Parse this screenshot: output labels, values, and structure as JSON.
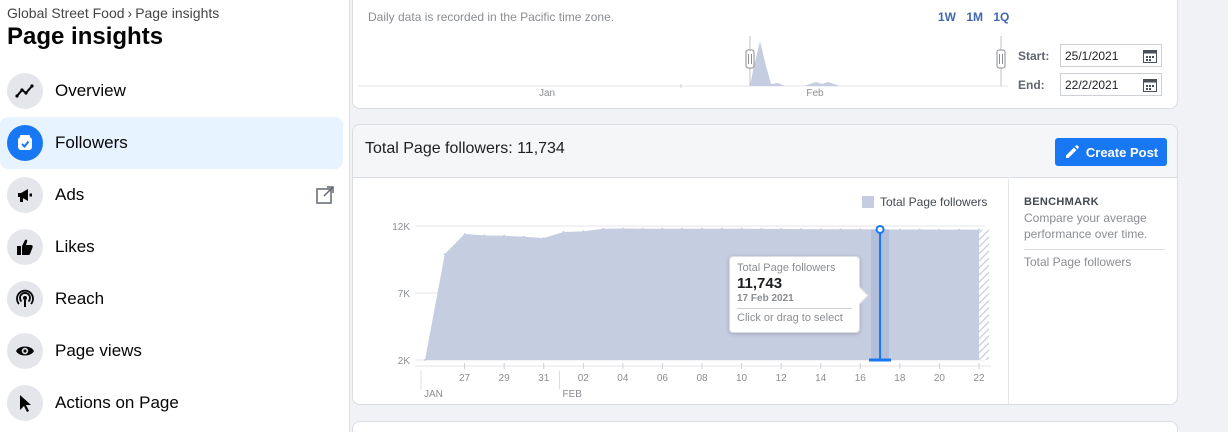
{
  "sidebar": {
    "breadcrumb": {
      "page": "Global Street Food",
      "section": "Page insights"
    },
    "title": "Page insights",
    "items": [
      {
        "label": "Overview",
        "icon": "trend-icon"
      },
      {
        "label": "Followers",
        "icon": "followers-icon"
      },
      {
        "label": "Ads",
        "icon": "megaphone-icon"
      },
      {
        "label": "Likes",
        "icon": "thumbs-up-icon"
      },
      {
        "label": "Reach",
        "icon": "broadcast-icon"
      },
      {
        "label": "Page views",
        "icon": "eye-icon"
      },
      {
        "label": "Actions on Page",
        "icon": "cursor-icon"
      }
    ]
  },
  "top_panel": {
    "timezone_note": "Daily data is recorded in the Pacific time zone.",
    "ranges": [
      "1W",
      "1M",
      "1Q"
    ],
    "mini_chart_labels": [
      "Jan",
      "Feb"
    ],
    "start_label": "Start:",
    "start_value": "25/1/2021",
    "end_label": "End:",
    "end_value": "22/2/2021"
  },
  "main": {
    "title": "Total Page followers: 11,734",
    "create_post_label": "Create Post",
    "legend": "Total Page followers",
    "benchmark": {
      "title": "BENCHMARK",
      "description": "Compare your average performance over time.",
      "item": "Total Page followers"
    },
    "tooltip": {
      "label": "Total Page followers",
      "value": "11,743",
      "date": "17 Feb 2021",
      "hint": "Click or drag to select"
    }
  },
  "chart_data": {
    "type": "area",
    "series": [
      {
        "name": "Total Page followers"
      }
    ],
    "x_tick_labels": [
      "27",
      "29",
      "31",
      "02",
      "04",
      "06",
      "08",
      "10",
      "12",
      "14",
      "16",
      "18",
      "20",
      "22"
    ],
    "x_month_labels": [
      "JAN",
      "FEB"
    ],
    "y_tick_labels": [
      "2K",
      "7K",
      "12K"
    ],
    "ylim": [
      2000,
      12000
    ],
    "points": [
      {
        "day": 25,
        "value": 2000
      },
      {
        "day": 26,
        "value": 9900
      },
      {
        "day": 27,
        "value": 11400
      },
      {
        "day": 28,
        "value": 11300
      },
      {
        "day": 29,
        "value": 11270
      },
      {
        "day": 30,
        "value": 11200
      },
      {
        "day": 31,
        "value": 11100
      },
      {
        "day": 32,
        "value": 11550
      },
      {
        "day": 33,
        "value": 11600
      },
      {
        "day": 34,
        "value": 11800
      },
      {
        "day": 35,
        "value": 11810
      },
      {
        "day": 36,
        "value": 11800
      },
      {
        "day": 37,
        "value": 11800
      },
      {
        "day": 38,
        "value": 11800
      },
      {
        "day": 39,
        "value": 11800
      },
      {
        "day": 40,
        "value": 11790
      },
      {
        "day": 41,
        "value": 11790
      },
      {
        "day": 42,
        "value": 11780
      },
      {
        "day": 43,
        "value": 11780
      },
      {
        "day": 44,
        "value": 11770
      },
      {
        "day": 45,
        "value": 11760
      },
      {
        "day": 46,
        "value": 11750
      },
      {
        "day": 47,
        "value": 11750
      },
      {
        "day": 48,
        "value": 11743
      },
      {
        "day": 49,
        "value": 11740
      },
      {
        "day": 50,
        "value": 11740
      },
      {
        "day": 51,
        "value": 11735
      },
      {
        "day": 52,
        "value": 11734
      },
      {
        "day": 53,
        "value": 11734
      }
    ],
    "selected_day": 48,
    "colors": {
      "area": "#c5cde0",
      "highlight": "#1877f2"
    }
  }
}
